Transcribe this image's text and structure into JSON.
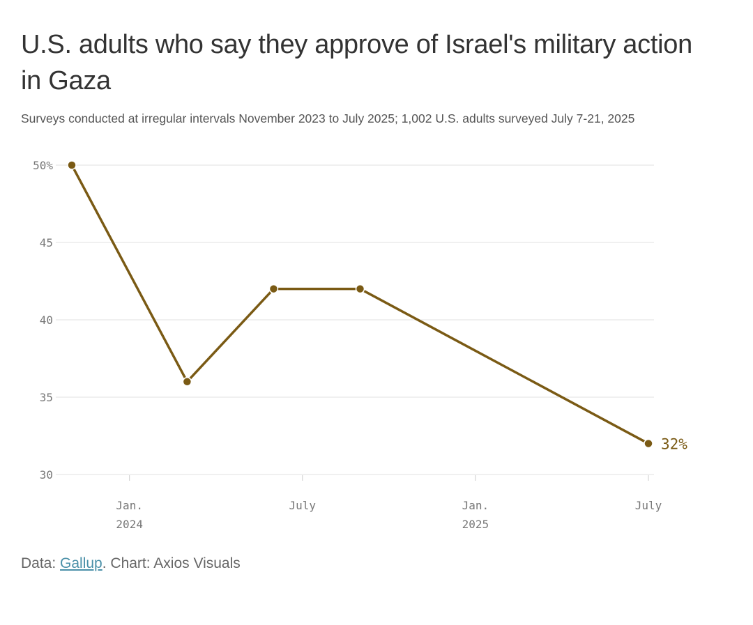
{
  "header": {
    "title": "U.S. adults who say they approve of Israel's military action in Gaza",
    "subtitle": "Surveys conducted at irregular intervals November 2023 to July 2025; 1,002 U.S. adults surveyed July 7-21, 2025"
  },
  "footer": {
    "data_prefix": "Data: ",
    "source_link": "Gallup",
    "suffix": ". Chart: Axios Visuals"
  },
  "colors": {
    "line": "#7a5a14",
    "grid": "#e2e2e2",
    "axis_text": "#777777"
  },
  "chart_data": {
    "type": "line",
    "title": "U.S. adults who say they approve of Israel's military action in Gaza",
    "ylabel": "",
    "xlabel": "",
    "ylim": [
      30,
      50
    ],
    "y_ticks": [
      {
        "value": 50,
        "label": "50%"
      },
      {
        "value": 45,
        "label": "45"
      },
      {
        "value": 40,
        "label": "40"
      },
      {
        "value": 35,
        "label": "35"
      },
      {
        "value": 30,
        "label": "30"
      }
    ],
    "x_range": [
      "2023-11",
      "2025-07"
    ],
    "x_ticks": [
      {
        "date": "2024-01",
        "line1": "Jan.",
        "line2": "2024"
      },
      {
        "date": "2024-07",
        "line1": "July",
        "line2": ""
      },
      {
        "date": "2025-01",
        "line1": "Jan.",
        "line2": "2025"
      },
      {
        "date": "2025-07",
        "line1": "July",
        "line2": ""
      }
    ],
    "series": [
      {
        "name": "Approve",
        "points": [
          {
            "date": "2023-11",
            "value": 50
          },
          {
            "date": "2024-03",
            "value": 36
          },
          {
            "date": "2024-06",
            "value": 42
          },
          {
            "date": "2024-09",
            "value": 42
          },
          {
            "date": "2025-07",
            "value": 32
          }
        ]
      }
    ],
    "end_label": "32%",
    "grid": true
  }
}
